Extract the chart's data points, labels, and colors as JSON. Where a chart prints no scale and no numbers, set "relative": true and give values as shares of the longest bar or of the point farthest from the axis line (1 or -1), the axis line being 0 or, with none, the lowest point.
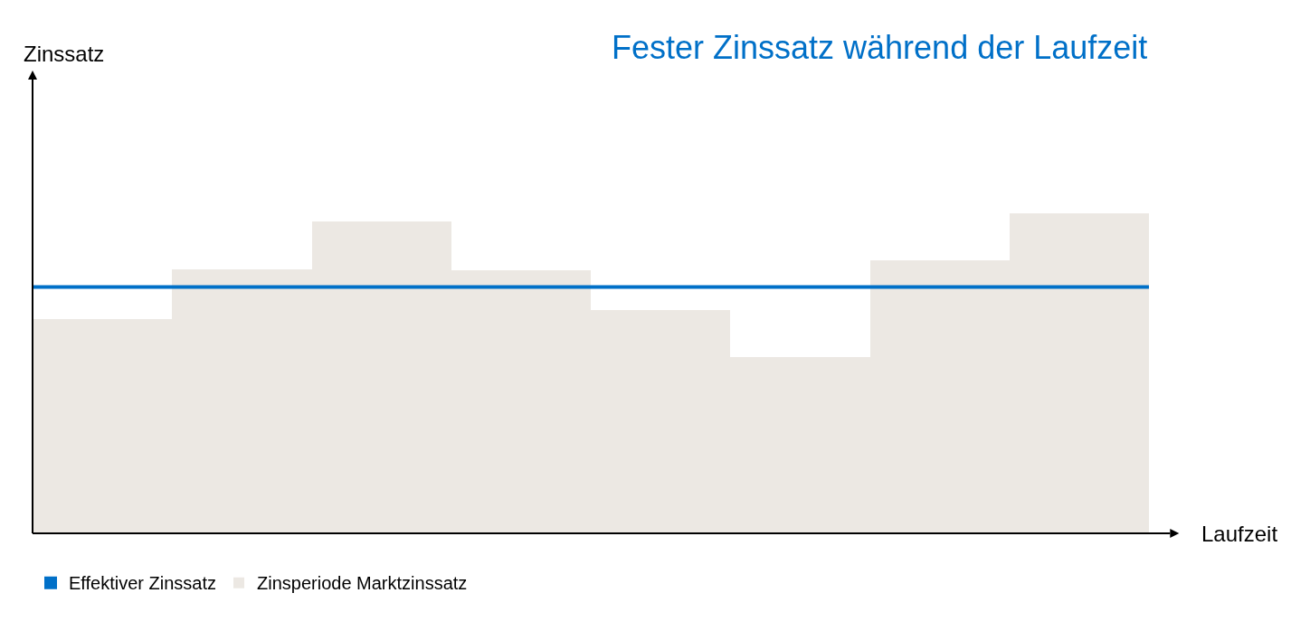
{
  "chart_data": {
    "type": "bar",
    "title": "Fester Zinssatz während der Laufzeit",
    "xlabel": "Laufzeit",
    "annotations": [
      "Zinssatz"
    ],
    "relative": true,
    "categories": [
      null,
      null,
      null,
      null,
      null,
      null,
      null,
      null
    ],
    "series": [
      {
        "name": "Zinsperiode Marktzinssatz",
        "color": "#ece8e3",
        "values": [
          0.671,
          0.827,
          0.975,
          0.822,
          0.7,
          0.552,
          0.853,
          1
        ]
      }
    ],
    "ref_lines": [
      {
        "axis": "y",
        "value": 0.771,
        "label": "Effektiver Zinssatz",
        "color": "#0070c8",
        "line_style": "solid"
      }
    ],
    "legend": "bottom left",
    "grid": false
  }
}
